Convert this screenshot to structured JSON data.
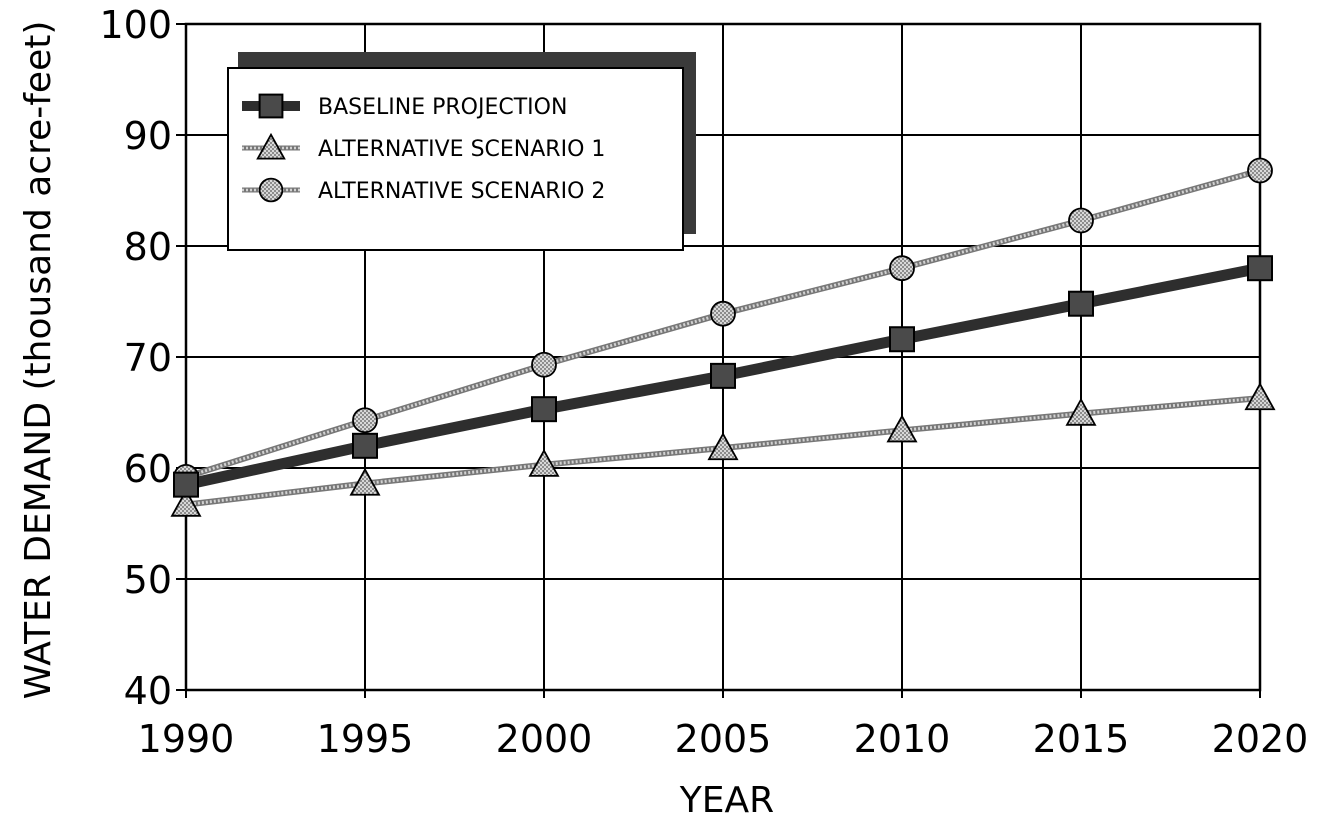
{
  "chart_data": {
    "type": "line",
    "x": [
      1990,
      1995,
      2000,
      2005,
      2010,
      2015,
      2020
    ],
    "xlabel": "YEAR",
    "ylabel": "WATER DEMAND (thousand acre-feet)",
    "xlim": [
      1990,
      2020
    ],
    "ylim": [
      40,
      100
    ],
    "xticks": [
      "1990",
      "1995",
      "2000",
      "2005",
      "2010",
      "2015",
      "2020"
    ],
    "yticks": [
      "40",
      "50",
      "60",
      "70",
      "80",
      "90",
      "100"
    ],
    "grid": true,
    "legend_position": "top-left",
    "series": [
      {
        "name": "BASELINE PROJECTION",
        "marker": "square",
        "line": "thick",
        "values": [
          58.5,
          62.0,
          65.3,
          68.3,
          71.6,
          74.8,
          78.0
        ]
      },
      {
        "name": "ALTERNATIVE SCENARIO 1",
        "marker": "triangle",
        "line": "thin",
        "values": [
          56.7,
          58.6,
          60.3,
          61.8,
          63.4,
          64.9,
          66.3
        ]
      },
      {
        "name": "ALTERNATIVE SCENARIO 2",
        "marker": "circle",
        "line": "thin",
        "values": [
          59.2,
          64.3,
          69.3,
          73.9,
          78.0,
          82.3,
          86.8
        ]
      }
    ]
  }
}
